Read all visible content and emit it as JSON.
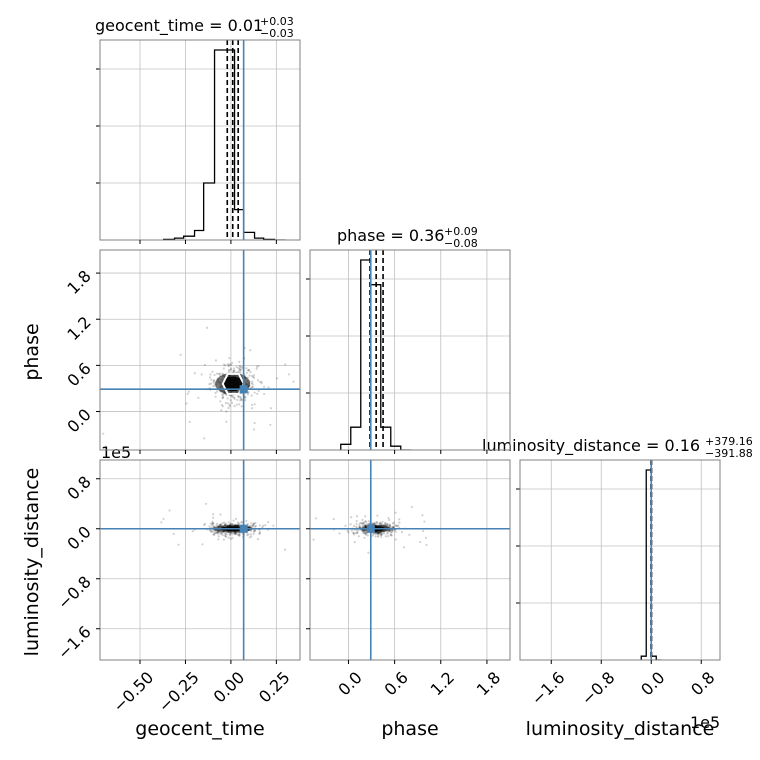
{
  "chart_data": {
    "type": "corner",
    "parameters": [
      "geocent_time",
      "phase",
      "luminosity_distance"
    ],
    "truth": {
      "geocent_time": 0.07,
      "phase": 0.29,
      "luminosity_distance": 0.0
    },
    "titles": {
      "geocent_time": {
        "label": "geocent_time = 0.01",
        "plus": "+0.03",
        "minus": "−0.03"
      },
      "phase": {
        "label": "phase = 0.36",
        "plus": "+0.09",
        "minus": "−0.08"
      },
      "luminosity_distance": {
        "label": "luminosity_distance = 0.16",
        "plus": "+379.16",
        "minus": "−391.88"
      }
    },
    "ranges": {
      "geocent_time": [
        -0.72,
        0.38
      ],
      "phase": [
        -0.5,
        2.1
      ],
      "luminosity_distance": [
        -210000,
        110000
      ]
    },
    "ticks": {
      "geocent_time": {
        "values": [
          -0.5,
          -0.25,
          0.0,
          0.25
        ],
        "labels": [
          "−0.50",
          "−0.25",
          "0.00",
          "0.25"
        ]
      },
      "phase": {
        "values": [
          0.0,
          0.6,
          1.2,
          1.8
        ],
        "labels": [
          "0.0",
          "0.6",
          "1.2",
          "1.8"
        ]
      },
      "luminosity_distance_y": {
        "values": [
          -160000,
          -80000,
          0,
          80000
        ],
        "labels": [
          "−1.6",
          "−0.8",
          "0.0",
          "0.8"
        ]
      },
      "luminosity_distance_x": {
        "values": [
          -160000,
          -80000,
          0,
          80000
        ],
        "labels": [
          "−1.6",
          "−0.8",
          "0.0",
          "0.8"
        ]
      }
    },
    "offset_text": "1e5",
    "quantile_lines": {
      "geocent_time": [
        -0.02,
        0.01,
        0.04
      ],
      "phase": [
        0.28,
        0.36,
        0.45
      ],
      "luminosity_distance": [
        -400,
        0,
        400
      ]
    },
    "histograms": {
      "geocent_time": {
        "edges": [
          -0.37,
          -0.31,
          -0.26,
          -0.2,
          -0.15,
          -0.09,
          -0.04,
          0.02,
          0.07,
          0.13,
          0.18,
          0.24,
          0.3
        ],
        "counts": [
          0.003,
          0.01,
          0.02,
          0.05,
          0.3,
          1.0,
          1.0,
          0.16,
          0.04,
          0.01,
          0.003,
          0.0
        ]
      },
      "phase": {
        "edges": [
          -0.1,
          0.03,
          0.16,
          0.29,
          0.42,
          0.55,
          0.68,
          0.81
        ],
        "counts": [
          0.03,
          0.12,
          1.0,
          0.87,
          0.12,
          0.02,
          0.0
        ]
      },
      "luminosity_distance": {
        "edges": [
          -16000,
          -8000,
          0,
          8000,
          16000
        ],
        "counts": [
          0.02,
          1.0,
          0.02,
          0.0
        ]
      }
    },
    "scatter_2d": {
      "geocent_time_vs_phase": {
        "center": [
          0.01,
          0.36
        ],
        "spread": [
          0.06,
          0.12
        ]
      },
      "geocent_time_vs_luminosity_distance": {
        "center": [
          0.01,
          0
        ],
        "spread": [
          0.07,
          5000
        ]
      },
      "phase_vs_luminosity_distance": {
        "center": [
          0.36,
          0
        ],
        "spread": [
          0.12,
          5000
        ]
      }
    },
    "y_hist_ticks": [
      0.3,
      0.6,
      0.9
    ],
    "colors": {
      "truth": "#4682b4",
      "hist": "#000000",
      "grid": "#c0c0c0",
      "frame": "#808080",
      "points": "#000000"
    },
    "grid": true
  }
}
